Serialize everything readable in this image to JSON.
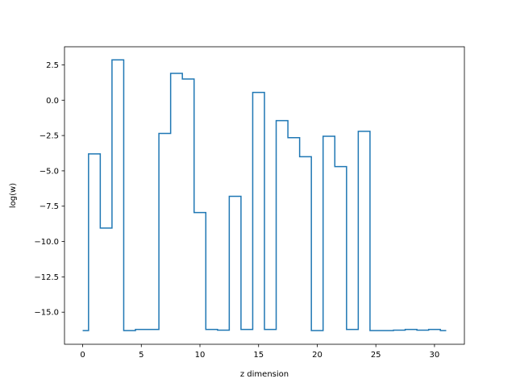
{
  "chart_data": {
    "type": "line",
    "drawstyle": "steps-mid",
    "title": "",
    "xlabel": "z dimension",
    "ylabel": "log(w)",
    "xlim": [
      -1.55,
      32.55
    ],
    "ylim": [
      -17.27,
      3.78
    ],
    "xticks": [
      0,
      5,
      10,
      15,
      20,
      25,
      30
    ],
    "xtick_labels": [
      "0",
      "5",
      "10",
      "15",
      "20",
      "25",
      "30"
    ],
    "yticks": [
      -15.0,
      -12.5,
      -10.0,
      -7.5,
      -5.0,
      -2.5,
      0.0,
      2.5
    ],
    "ytick_labels": [
      "−15.0",
      "−12.5",
      "−10.0",
      "−7.5",
      "−5.0",
      "−2.5",
      "0.0",
      "2.5"
    ],
    "grid": false,
    "legend": "none",
    "color": "#1f77b4",
    "series": [
      {
        "x": [
          0,
          1,
          2,
          3,
          4,
          5,
          6,
          7,
          8,
          9,
          10,
          11,
          12,
          13,
          14,
          15,
          16,
          17,
          18,
          19,
          20,
          21,
          22,
          23,
          24,
          25,
          26,
          27,
          28,
          29,
          30,
          31
        ],
        "values": [
          -16.3,
          -3.8,
          -9.05,
          2.85,
          -16.3,
          -16.22,
          -16.22,
          -2.35,
          1.9,
          1.5,
          -7.95,
          -16.22,
          -16.27,
          -6.8,
          -16.22,
          0.55,
          -16.22,
          -1.45,
          -2.65,
          -4.0,
          -16.3,
          -2.55,
          -4.7,
          -16.22,
          -2.2,
          -16.3,
          -16.3,
          -16.27,
          -16.22,
          -16.27,
          -16.22,
          -16.3
        ]
      }
    ]
  }
}
